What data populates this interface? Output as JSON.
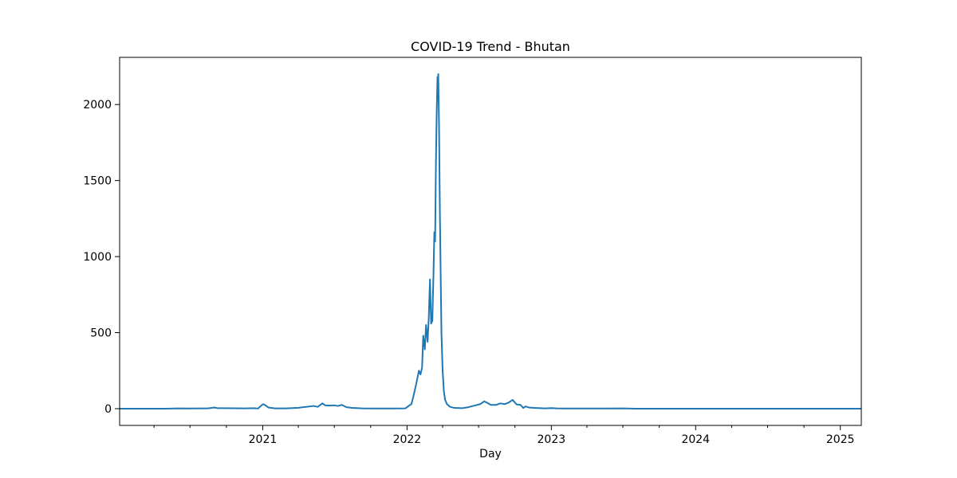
{
  "chart_data": {
    "type": "line",
    "title": "COVID-19 Trend - Bhutan",
    "xlabel": "Day",
    "ylabel": "",
    "x_type": "date",
    "xlim": [
      "2020-01-05",
      "2025-02-23"
    ],
    "ylim": [
      -110,
      2310
    ],
    "x_ticks": [
      {
        "date": "2021-01-01",
        "label": "2021"
      },
      {
        "date": "2022-01-01",
        "label": "2022"
      },
      {
        "date": "2023-01-01",
        "label": "2023"
      },
      {
        "date": "2024-01-01",
        "label": "2024"
      },
      {
        "date": "2025-01-01",
        "label": "2025"
      }
    ],
    "y_ticks": [
      0,
      500,
      1000,
      1500,
      2000
    ],
    "grid": false,
    "series": [
      {
        "color": "#1f77b4",
        "points": [
          [
            "2020-01-05",
            0
          ],
          [
            "2020-05-01",
            0
          ],
          [
            "2020-06-01",
            2
          ],
          [
            "2020-07-01",
            1
          ],
          [
            "2020-08-15",
            2
          ],
          [
            "2020-09-01",
            8
          ],
          [
            "2020-09-10",
            3
          ],
          [
            "2020-10-01",
            3
          ],
          [
            "2020-11-15",
            2
          ],
          [
            "2020-12-10",
            3
          ],
          [
            "2020-12-20",
            1
          ],
          [
            "2020-12-28",
            20
          ],
          [
            "2021-01-02",
            30
          ],
          [
            "2021-01-08",
            22
          ],
          [
            "2021-01-15",
            8
          ],
          [
            "2021-02-01",
            2
          ],
          [
            "2021-03-01",
            2
          ],
          [
            "2021-04-01",
            6
          ],
          [
            "2021-04-20",
            12
          ],
          [
            "2021-05-10",
            18
          ],
          [
            "2021-05-20",
            12
          ],
          [
            "2021-06-01",
            35
          ],
          [
            "2021-06-08",
            22
          ],
          [
            "2021-06-20",
            20
          ],
          [
            "2021-07-01",
            22
          ],
          [
            "2021-07-10",
            18
          ],
          [
            "2021-07-20",
            25
          ],
          [
            "2021-08-01",
            10
          ],
          [
            "2021-08-15",
            5
          ],
          [
            "2021-09-10",
            2
          ],
          [
            "2021-10-15",
            1
          ],
          [
            "2021-12-01",
            1
          ],
          [
            "2021-12-28",
            2
          ],
          [
            "2022-01-06",
            20
          ],
          [
            "2022-01-12",
            30
          ],
          [
            "2022-01-17",
            80
          ],
          [
            "2022-01-24",
            160
          ],
          [
            "2022-01-31",
            250
          ],
          [
            "2022-02-04",
            225
          ],
          [
            "2022-02-08",
            270
          ],
          [
            "2022-02-11",
            480
          ],
          [
            "2022-02-15",
            390
          ],
          [
            "2022-02-18",
            550
          ],
          [
            "2022-02-22",
            440
          ],
          [
            "2022-02-25",
            600
          ],
          [
            "2022-02-28",
            850
          ],
          [
            "2022-03-03",
            560
          ],
          [
            "2022-03-06",
            580
          ],
          [
            "2022-03-09",
            900
          ],
          [
            "2022-03-11",
            1160
          ],
          [
            "2022-03-13",
            1100
          ],
          [
            "2022-03-15",
            1600
          ],
          [
            "2022-03-17",
            1950
          ],
          [
            "2022-03-19",
            2180
          ],
          [
            "2022-03-20",
            2150
          ],
          [
            "2022-03-21",
            2200
          ],
          [
            "2022-03-23",
            1850
          ],
          [
            "2022-03-25",
            1300
          ],
          [
            "2022-03-27",
            900
          ],
          [
            "2022-03-29",
            500
          ],
          [
            "2022-04-01",
            250
          ],
          [
            "2022-04-04",
            120
          ],
          [
            "2022-04-07",
            60
          ],
          [
            "2022-04-12",
            30
          ],
          [
            "2022-04-20",
            12
          ],
          [
            "2022-05-01",
            5
          ],
          [
            "2022-05-20",
            3
          ],
          [
            "2022-06-05",
            10
          ],
          [
            "2022-06-20",
            20
          ],
          [
            "2022-07-05",
            30
          ],
          [
            "2022-07-15",
            48
          ],
          [
            "2022-07-22",
            40
          ],
          [
            "2022-08-01",
            25
          ],
          [
            "2022-08-15",
            25
          ],
          [
            "2022-08-25",
            35
          ],
          [
            "2022-09-05",
            30
          ],
          [
            "2022-09-15",
            40
          ],
          [
            "2022-09-25",
            58
          ],
          [
            "2022-10-05",
            28
          ],
          [
            "2022-10-15",
            25
          ],
          [
            "2022-10-22",
            5
          ],
          [
            "2022-10-28",
            15
          ],
          [
            "2022-11-05",
            8
          ],
          [
            "2022-11-20",
            5
          ],
          [
            "2022-12-15",
            2
          ],
          [
            "2023-01-01",
            4
          ],
          [
            "2023-01-15",
            2
          ],
          [
            "2023-02-01",
            1
          ],
          [
            "2023-04-01",
            1
          ],
          [
            "2023-07-01",
            2
          ],
          [
            "2023-08-01",
            0
          ],
          [
            "2024-01-01",
            0
          ],
          [
            "2025-02-23",
            0
          ]
        ]
      }
    ]
  }
}
